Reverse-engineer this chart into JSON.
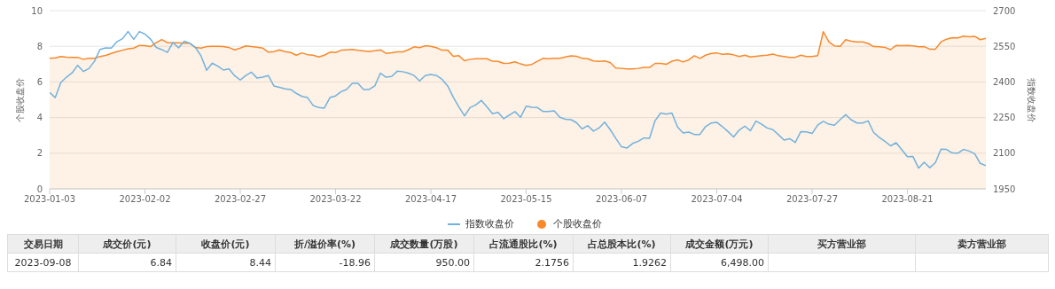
{
  "chart_data": [
    {
      "type": "line",
      "categories": [
        "2023-01-03",
        null,
        null,
        null,
        null,
        null,
        null,
        null,
        null,
        null,
        null,
        null,
        null,
        null,
        null,
        null,
        null,
        "2023-02-02",
        null,
        null,
        null,
        null,
        null,
        null,
        null,
        null,
        null,
        null,
        null,
        null,
        null,
        null,
        null,
        null,
        "2023-02-27",
        null,
        null,
        null,
        null,
        null,
        null,
        null,
        null,
        null,
        null,
        null,
        null,
        null,
        null,
        null,
        null,
        "2023-03-22",
        null,
        null,
        null,
        null,
        null,
        null,
        null,
        null,
        null,
        null,
        null,
        null,
        null,
        null,
        null,
        null,
        "2023-04-17",
        null,
        null,
        null,
        null,
        null,
        null,
        null,
        null,
        null,
        null,
        null,
        null,
        null,
        null,
        null,
        null,
        "2023-05-15",
        null,
        null,
        null,
        null,
        null,
        null,
        null,
        null,
        null,
        null,
        null,
        null,
        null,
        null,
        null,
        null,
        "2023-06-07",
        null,
        null,
        null,
        null,
        null,
        null,
        null,
        null,
        null,
        null,
        null,
        null,
        null,
        null,
        null,
        null,
        "2023-07-04",
        null,
        null,
        null,
        null,
        null,
        null,
        null,
        null,
        null,
        null,
        null,
        null,
        null,
        null,
        null,
        null,
        "2023-07-27",
        null,
        null,
        null,
        null,
        null,
        null,
        null,
        null,
        null,
        null,
        null,
        null,
        null,
        null,
        null,
        null,
        "2023-08-21",
        null,
        null,
        null,
        null,
        null,
        null,
        null,
        null,
        null,
        null,
        null,
        null,
        null,
        null
      ],
      "series": [
        {
          "name": "指数收盘价",
          "type": "line",
          "axis": "y2",
          "color": "#72b2dd",
          "values": [
            2356,
            2334,
            2398,
            2420,
            2438,
            2470,
            2444,
            2456,
            2487,
            2537,
            2543,
            2542,
            2569,
            2582,
            2612,
            2579,
            2612,
            2601,
            2580,
            2545,
            2536,
            2524,
            2566,
            2543,
            2571,
            2563,
            2545,
            2510,
            2449,
            2479,
            2466,
            2450,
            2455,
            2426,
            2408,
            2427,
            2441,
            2416,
            2420,
            2427,
            2383,
            2377,
            2371,
            2368,
            2352,
            2339,
            2334,
            2301,
            2292,
            2290,
            2334,
            2341,
            2359,
            2369,
            2394,
            2394,
            2368,
            2368,
            2383,
            2437,
            2420,
            2423,
            2445,
            2443,
            2437,
            2427,
            2404,
            2427,
            2431,
            2427,
            2411,
            2383,
            2336,
            2295,
            2257,
            2292,
            2303,
            2322,
            2295,
            2266,
            2272,
            2245,
            2260,
            2275,
            2251,
            2298,
            2293,
            2292,
            2276,
            2276,
            2278,
            2251,
            2243,
            2241,
            2228,
            2202,
            2216,
            2193,
            2206,
            2231,
            2199,
            2162,
            2127,
            2122,
            2141,
            2150,
            2164,
            2163,
            2237,
            2269,
            2264,
            2269,
            2210,
            2185,
            2189,
            2179,
            2179,
            2212,
            2227,
            2230,
            2212,
            2191,
            2168,
            2197,
            2214,
            2195,
            2235,
            2222,
            2206,
            2199,
            2178,
            2155,
            2161,
            2145,
            2191,
            2190,
            2183,
            2218,
            2234,
            2222,
            2218,
            2241,
            2262,
            2240,
            2227,
            2227,
            2236,
            2187,
            2166,
            2150,
            2131,
            2144,
            2115,
            2085,
            2086,
            2037,
            2062,
            2039,
            2060,
            2117,
            2116,
            2101,
            2100,
            2116,
            2109,
            2098,
            2057,
            2048
          ]
        },
        {
          "name": "个股收盘价",
          "type": "area",
          "color": "#f7892b",
          "values": [
            7.33,
            7.35,
            7.43,
            7.39,
            7.38,
            7.38,
            7.27,
            7.33,
            7.33,
            7.43,
            7.49,
            7.6,
            7.7,
            7.78,
            7.86,
            7.9,
            8.05,
            8.04,
            7.98,
            8.2,
            8.38,
            8.2,
            8.2,
            8.2,
            8.17,
            8.17,
            7.93,
            7.9,
            7.98,
            8.0,
            8.0,
            7.98,
            7.93,
            7.8,
            7.9,
            8.02,
            7.98,
            7.95,
            7.9,
            7.67,
            7.7,
            7.8,
            7.7,
            7.65,
            7.5,
            7.63,
            7.53,
            7.5,
            7.4,
            7.5,
            7.67,
            7.65,
            7.78,
            7.8,
            7.82,
            7.77,
            7.74,
            7.71,
            7.75,
            7.8,
            7.6,
            7.64,
            7.69,
            7.69,
            7.81,
            7.97,
            7.92,
            8.03,
            8.0,
            7.92,
            7.78,
            7.78,
            7.44,
            7.47,
            7.19,
            7.27,
            7.3,
            7.3,
            7.3,
            7.16,
            7.15,
            7.04,
            7.05,
            7.13,
            7.01,
            6.93,
            6.98,
            7.16,
            7.32,
            7.3,
            7.33,
            7.33,
            7.4,
            7.46,
            7.44,
            7.32,
            7.3,
            7.18,
            7.15,
            7.18,
            7.09,
            6.78,
            6.76,
            6.73,
            6.73,
            6.76,
            6.82,
            6.81,
            7.04,
            7.04,
            6.99,
            7.16,
            7.24,
            7.12,
            7.24,
            7.47,
            7.32,
            7.5,
            7.6,
            7.63,
            7.55,
            7.58,
            7.52,
            7.43,
            7.5,
            7.4,
            7.44,
            7.47,
            7.5,
            7.56,
            7.47,
            7.43,
            7.38,
            7.38,
            7.5,
            7.43,
            7.43,
            7.47,
            8.82,
            8.25,
            8.02,
            8.0,
            8.37,
            8.28,
            8.25,
            8.25,
            8.16,
            7.98,
            7.97,
            7.94,
            7.81,
            8.05,
            8.03,
            8.05,
            8.02,
            7.97,
            7.98,
            7.84,
            7.84,
            8.25,
            8.4,
            8.48,
            8.47,
            8.57,
            8.53,
            8.56,
            8.37,
            8.44
          ]
        }
      ],
      "ylabel": "个股收盘价",
      "y2label": "指数收盘价",
      "ylim": [
        0,
        10
      ],
      "yticks": [
        0,
        2,
        4,
        6,
        8,
        10
      ],
      "y2lim": [
        1950,
        2700
      ],
      "y2ticks": [
        1950,
        2100,
        2250,
        2400,
        2550,
        2700
      ],
      "grid": "y",
      "legend": "bottom",
      "marker": "none"
    },
    {
      "type": "other",
      "categories": [
        "交易日期",
        "成交价(元)",
        "收盘价(元)",
        "折/溢价率(%)",
        "成交数量(万股)",
        "占流通股比(%)",
        "占总股本比(%)",
        "成交金额(万元)",
        "买方营业部",
        "卖方营业部"
      ],
      "cell_labels": [
        [
          "2023-09-08",
          "6.84",
          "8.44",
          "-18.96",
          "950.00",
          "2.1756",
          "1.9262",
          "6,498.00",
          null,
          null
        ]
      ]
    }
  ]
}
